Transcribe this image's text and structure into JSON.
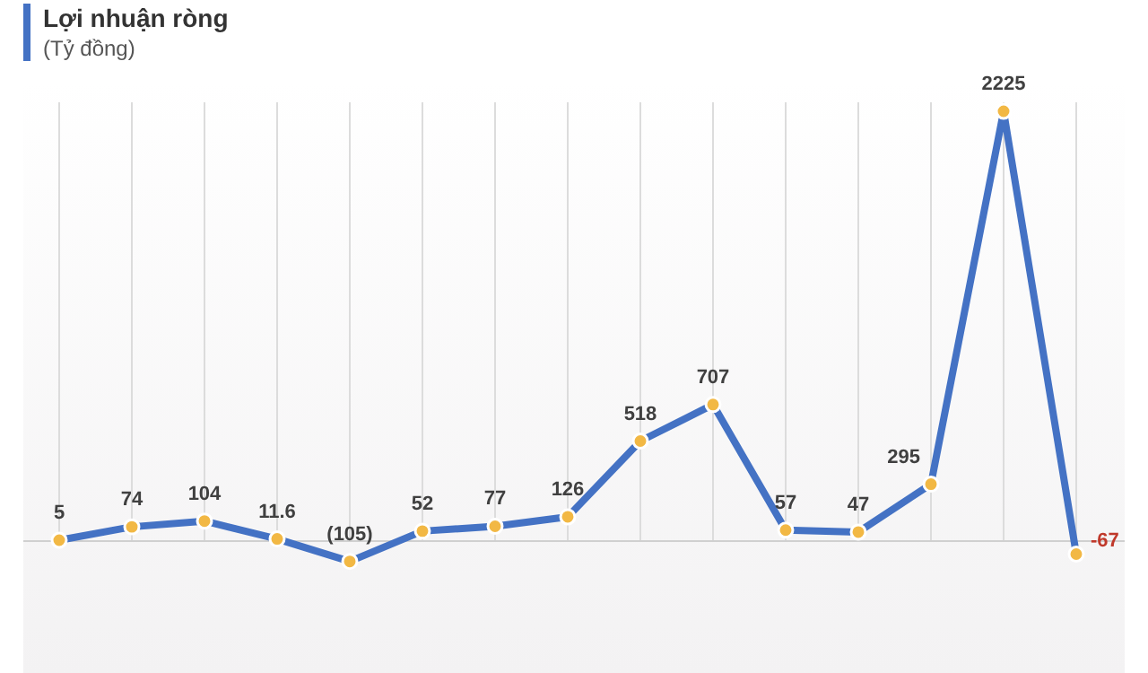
{
  "chart_data": {
    "type": "line",
    "title": "Lợi nhuận ròng",
    "subtitle": "(Tỷ đồng)",
    "categories": [
      null,
      null,
      null,
      null,
      null,
      null,
      null,
      null,
      null,
      null,
      null,
      null,
      null,
      null,
      null
    ],
    "series": [
      {
        "color": "#4472c4",
        "values": [
          5,
          74,
          104,
          11.6,
          -105,
          52,
          77,
          126,
          518,
          707,
          57,
          47,
          295,
          2225,
          -67
        ],
        "value_labels": [
          "5",
          "74",
          "104",
          "11.6",
          "(105)",
          "52",
          "77",
          "126",
          "518",
          "707",
          "57",
          "47",
          "295",
          "2225",
          "-67"
        ]
      }
    ],
    "marker": "circle",
    "grid": "x",
    "data_labels": true
  }
}
